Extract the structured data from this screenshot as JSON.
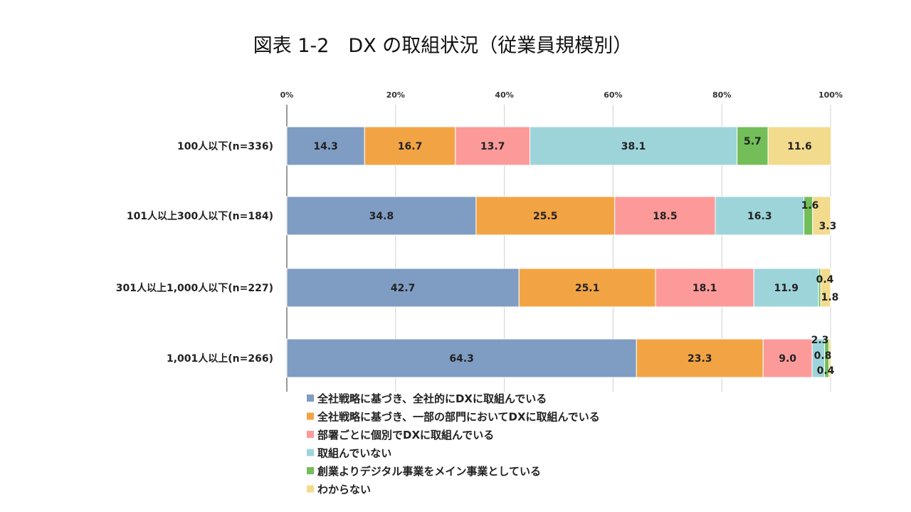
{
  "chart_data": {
    "type": "bar",
    "orientation": "horizontal",
    "stacked": true,
    "title": "図表 1-2　DX の取組状況（従業員規模別）",
    "xlim": [
      0,
      100
    ],
    "tick_labels": [
      "0%",
      "20%",
      "40%",
      "60%",
      "80%",
      "100%"
    ],
    "grid": true,
    "legend_position": "bottom",
    "categories": [
      "100人以下(n=336)",
      "101人以上300人以下(n=184)",
      "301人以上1,000人以下(n=227)",
      "1,001人以上(n=266)"
    ],
    "series": [
      {
        "name": "全社戦略に基づき、全社的にDXに取組んでいる",
        "color": "#7f9cc3",
        "values": [
          14.3,
          34.8,
          42.7,
          64.3
        ],
        "labels": [
          "14.3",
          "34.8",
          "42.7",
          "64.3"
        ]
      },
      {
        "name": "全社戦略に基づき、一部の部門においてDXに取組んでいる",
        "color": "#f2a444",
        "values": [
          16.7,
          25.5,
          25.1,
          23.3
        ],
        "labels": [
          "16.7",
          "25.5",
          "25.1",
          "23.3"
        ]
      },
      {
        "name": "部署ごとに個別でDXに取組んでいる",
        "color": "#fc9a9a",
        "values": [
          13.7,
          18.5,
          18.1,
          9.0
        ],
        "labels": [
          "13.7",
          "18.5",
          "18.1",
          "9.0"
        ]
      },
      {
        "name": "取組んでいない",
        "color": "#9dd4da",
        "values": [
          38.1,
          16.3,
          11.9,
          2.3
        ],
        "labels": [
          "38.1",
          "16.3",
          "11.9",
          "2.3"
        ]
      },
      {
        "name": "創業よりデジタル事業をメイン事業としている",
        "color": "#73be58",
        "values": [
          5.7,
          1.6,
          0.4,
          0.8
        ],
        "labels": [
          "5.7",
          "1.6",
          "0.4",
          "0.8"
        ]
      },
      {
        "name": "わからない",
        "color": "#f3db8e",
        "values": [
          11.6,
          3.3,
          1.8,
          0.4
        ],
        "labels": [
          "11.6",
          "3.3",
          "1.8",
          "0.4"
        ]
      }
    ]
  }
}
